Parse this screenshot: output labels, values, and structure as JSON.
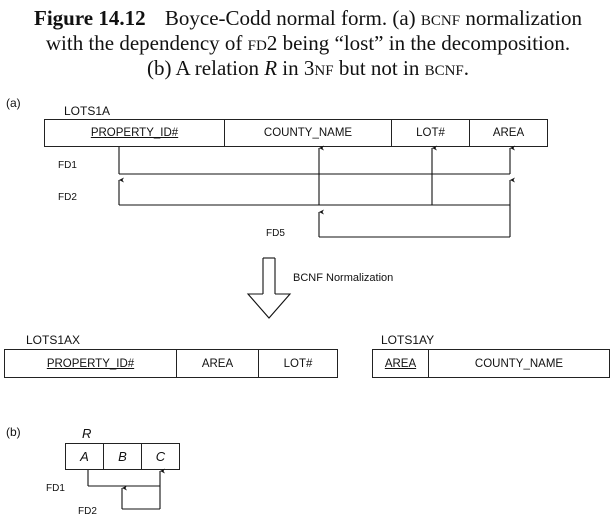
{
  "caption": {
    "figure_label": "Figure 14.12",
    "line1_text": "Boyce-Codd normal form. (a)",
    "line1_bcnf": "bcnf",
    "line1_rest": "normalization",
    "line2_a": "with the dependency of",
    "line2_fd": "fd",
    "line2_b": "2 being “lost” in the decomposition.",
    "line3_a": "(b) A relation",
    "line3_r": "R",
    "line3_b": "in 3",
    "line3_nf": "nf",
    "line3_c": "but not in",
    "line3_bcnf": "bcnf",
    "line3_end": "."
  },
  "part_a": {
    "marker": "(a)",
    "relation_name": "LOTS1A",
    "attributes": [
      "PROPERTY_ID#",
      "COUNTY_NAME",
      "LOT#",
      "AREA"
    ],
    "fd_labels": [
      "FD1",
      "FD2",
      "FD5"
    ],
    "normalization_label": "BCNF Normalization",
    "lots1ax": {
      "name": "LOTS1AX",
      "attributes": [
        "PROPERTY_ID#",
        "AREA",
        "LOT#"
      ]
    },
    "lots1ay": {
      "name": "LOTS1AY",
      "attributes": [
        "AREA",
        "COUNTY_NAME"
      ]
    }
  },
  "part_b": {
    "marker": "(b)",
    "relation_name": "R",
    "attributes": [
      "A",
      "B",
      "C"
    ],
    "fd_labels": [
      "FD1",
      "FD2"
    ]
  }
}
